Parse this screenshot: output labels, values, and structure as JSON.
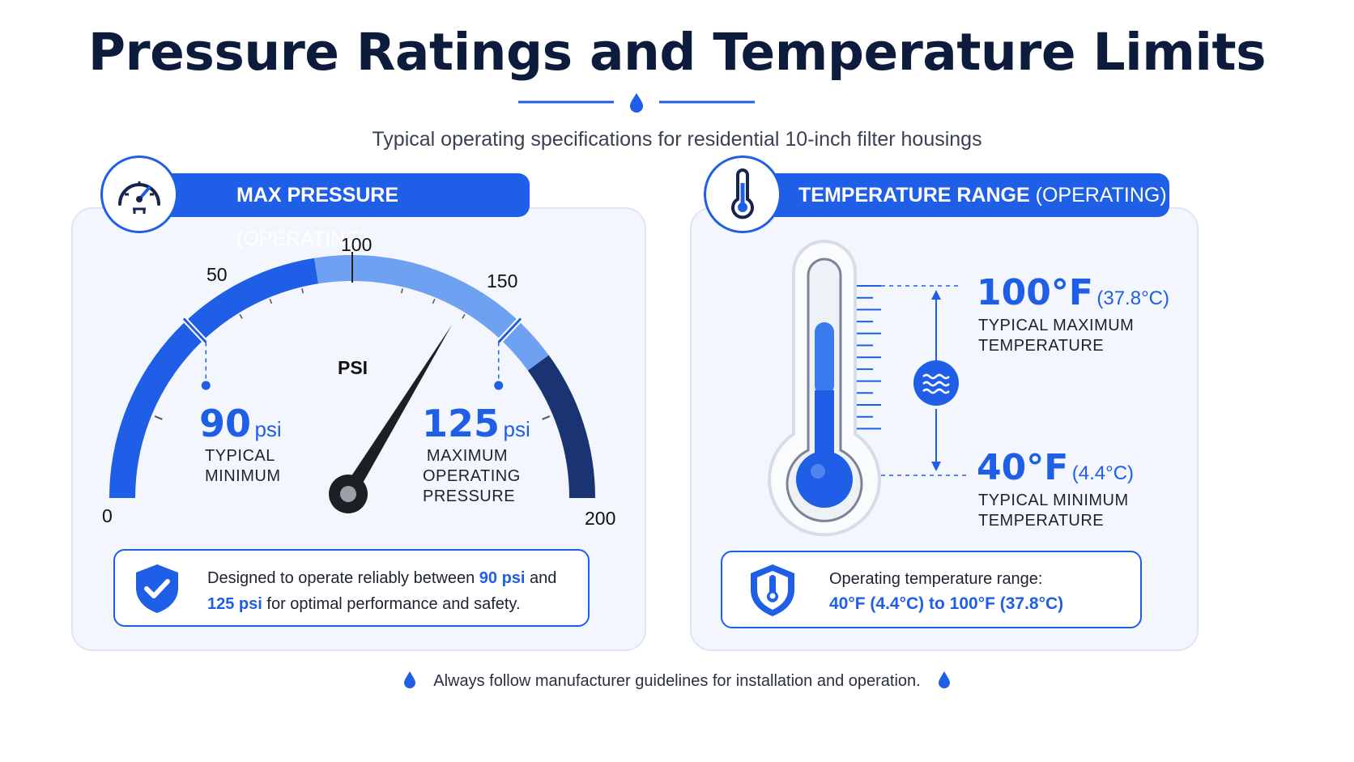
{
  "title": "Pressure Ratings and Temperature Limits",
  "subtitle": "Typical operating specifications for residential 10-inch filter housings",
  "pressure": {
    "header_bold": "MAX PRESSURE",
    "header_rest": "(OPERATING)",
    "icon": "gauge-icon",
    "gauge": {
      "min": 0,
      "max": 200,
      "tick_labels": [
        "0",
        "50",
        "100",
        "150",
        "200"
      ],
      "unit_label": "PSI",
      "needle_value": 135,
      "marked_values": [
        90,
        125
      ]
    },
    "min_value": "90",
    "min_unit": "psi",
    "min_caption_1": "TYPICAL",
    "min_caption_2": "MINIMUM",
    "max_value": "125",
    "max_unit": "psi",
    "max_caption_1": "MAXIMUM",
    "max_caption_2": "OPERATING",
    "max_caption_3": "PRESSURE",
    "note_1": "Designed to operate reliably between ",
    "note_hl_1": "90 psi",
    "note_2": " and",
    "note_hl_2": "125 psi",
    "note_3": " for optimal performance and safety.",
    "note_icon": "shield-check-icon"
  },
  "temperature": {
    "header_bold": "TEMPERATURE RANGE",
    "header_rest": "(OPERATING)",
    "icon": "thermometer-icon",
    "max_value": "100°F",
    "max_celsius": "(37.8°C)",
    "max_caption_1": "TYPICAL MAXIMUM",
    "max_caption_2": "TEMPERATURE",
    "min_value": "40°F",
    "min_celsius": "(4.4°C)",
    "min_caption_1": "TYPICAL MINIMUM",
    "min_caption_2": "TEMPERATURE",
    "range_icon": "water-waves-icon",
    "note_1": "Operating temperature range:",
    "note_2": "40°F (4.4°C) to 100°F (37.8°C)",
    "note_icon": "shield-thermometer-icon"
  },
  "footer": "Always follow manufacturer guidelines for installation and operation.",
  "colors": {
    "accent": "#1f5ee6",
    "light_accent": "#6ea1f2",
    "dark_accent": "#1a3372",
    "title": "#0d1b3d"
  }
}
